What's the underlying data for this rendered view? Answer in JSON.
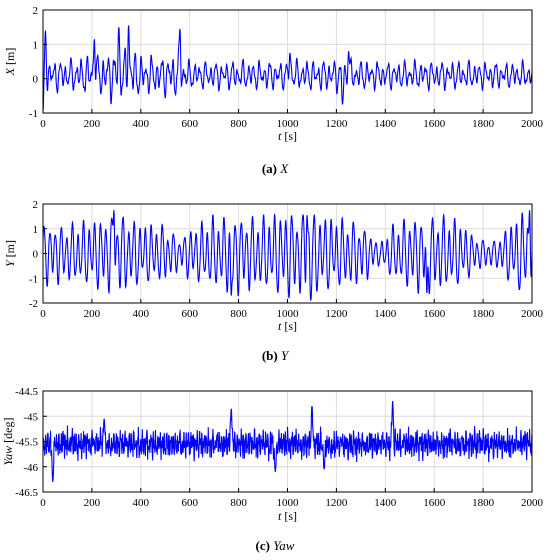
{
  "chart_data": [
    {
      "type": "line",
      "caption_tag": "(a)",
      "caption_text": "X",
      "xlabel_var": "t",
      "xlabel_unit": "[s]",
      "ylabel_var": "X",
      "ylabel_unit": "[m]",
      "xlim": [
        0,
        2000
      ],
      "ylim": [
        -1,
        2
      ],
      "xticks": [
        0,
        200,
        400,
        600,
        800,
        1000,
        1200,
        1400,
        1600,
        1800,
        2000
      ],
      "yticks": [
        -1,
        0,
        1,
        2
      ],
      "grid": true,
      "color": "#0000ff",
      "signal": {
        "components": [
          {
            "amp": 0.3,
            "period": 22,
            "phase": 0.4
          },
          {
            "amp": 0.16,
            "period": 37,
            "phase": 1.3
          },
          {
            "amp": 0.1,
            "period": 13,
            "phase": 2.1
          },
          {
            "amp": 0.05,
            "period": 7,
            "phase": 0.7
          }
        ],
        "envelope": {
          "x": [
            0,
            100,
            200,
            300,
            360,
            420,
            500,
            560,
            600,
            800,
            1000,
            1200,
            1400,
            1600,
            1800,
            2000
          ],
          "y": [
            1.0,
            0.9,
            1.2,
            1.5,
            1.5,
            1.1,
            1.2,
            1.45,
            0.8,
            0.85,
            0.85,
            0.95,
            0.8,
            0.85,
            0.8,
            0.75
          ]
        },
        "offset": 0.1,
        "peaks": [
          {
            "x": 10,
            "y": 1.4
          },
          {
            "x": 210,
            "y": 1.15
          },
          {
            "x": 310,
            "y": 1.5
          },
          {
            "x": 350,
            "y": 1.55
          },
          {
            "x": 560,
            "y": 1.45
          },
          {
            "x": 1010,
            "y": 0.75
          },
          {
            "x": 1250,
            "y": 0.8
          }
        ],
        "troughs": [
          {
            "x": 0,
            "y": -0.95
          },
          {
            "x": 1225,
            "y": -0.75
          }
        ]
      }
    },
    {
      "type": "line",
      "caption_tag": "(b)",
      "caption_text": "Y",
      "xlabel_var": "t",
      "xlabel_unit": "[s]",
      "ylabel_var": "Y",
      "ylabel_unit": "[m]",
      "xlim": [
        0,
        2000
      ],
      "ylim": [
        -2,
        2
      ],
      "xticks": [
        0,
        200,
        400,
        600,
        800,
        1000,
        1200,
        1400,
        1600,
        1800,
        2000
      ],
      "yticks": [
        -2,
        -1,
        0,
        1,
        2
      ],
      "grid": true,
      "color": "#0000ff",
      "signal": {
        "components": [
          {
            "amp": 0.8,
            "period": 23,
            "phase": 0.2
          },
          {
            "amp": 0.25,
            "period": 41,
            "phase": 1.9
          },
          {
            "amp": 0.1,
            "period": 11,
            "phase": 0.9
          }
        ],
        "envelope": {
          "x": [
            0,
            100,
            200,
            300,
            400,
            500,
            560,
            600,
            700,
            800,
            900,
            1000,
            1100,
            1200,
            1300,
            1380,
            1420,
            1500,
            1600,
            1700,
            1780,
            1850,
            1950,
            2000
          ],
          "y": [
            1.2,
            1.1,
            1.3,
            1.6,
            1.2,
            1.1,
            0.6,
            1.0,
            1.4,
            1.5,
            1.4,
            1.7,
            1.6,
            1.4,
            1.2,
            0.4,
            1.0,
            1.4,
            1.5,
            1.3,
            0.6,
            0.5,
            1.6,
            1.5
          ]
        },
        "offset": 0.0,
        "peaks": [
          {
            "x": 290,
            "y": 1.75
          },
          {
            "x": 1080,
            "y": 1.55
          },
          {
            "x": 1990,
            "y": 1.75
          }
        ],
        "troughs": [
          {
            "x": 1095,
            "y": -1.9
          },
          {
            "x": 770,
            "y": -1.7
          },
          {
            "x": 1570,
            "y": -1.6
          }
        ]
      }
    },
    {
      "type": "line",
      "caption_tag": "(c)",
      "caption_text": "Yaw",
      "xlabel_var": "t",
      "xlabel_unit": "[s]",
      "ylabel_var": "Yaw",
      "ylabel_unit": "[deg]",
      "xlim": [
        0,
        2000
      ],
      "ylim": [
        -46.5,
        -44.5
      ],
      "xticks": [
        0,
        200,
        400,
        600,
        800,
        1000,
        1200,
        1400,
        1600,
        1800,
        2000
      ],
      "yticks": [
        -46.5,
        -46,
        -45.5,
        -45,
        -44.5
      ],
      "grid": true,
      "color": "#0000ff",
      "signal": {
        "components": [
          {
            "amp": 0.12,
            "period": 9,
            "phase": 0.3
          },
          {
            "amp": 0.08,
            "period": 5,
            "phase": 1.1
          },
          {
            "amp": 0.06,
            "period": 17,
            "phase": 2.4
          },
          {
            "amp": 0.05,
            "period": 3,
            "phase": 0.5
          }
        ],
        "envelope": {
          "x": [
            0,
            2000
          ],
          "y": [
            1.0,
            1.0
          ]
        },
        "offset": -45.55,
        "noise": 0.12,
        "peaks": [
          {
            "x": 770,
            "y": -44.85
          },
          {
            "x": 1100,
            "y": -44.8
          },
          {
            "x": 1430,
            "y": -44.7
          },
          {
            "x": 250,
            "y": -45.05
          }
        ],
        "troughs": [
          {
            "x": 40,
            "y": -46.3
          },
          {
            "x": 950,
            "y": -46.1
          },
          {
            "x": 1150,
            "y": -46.05
          }
        ]
      }
    }
  ]
}
